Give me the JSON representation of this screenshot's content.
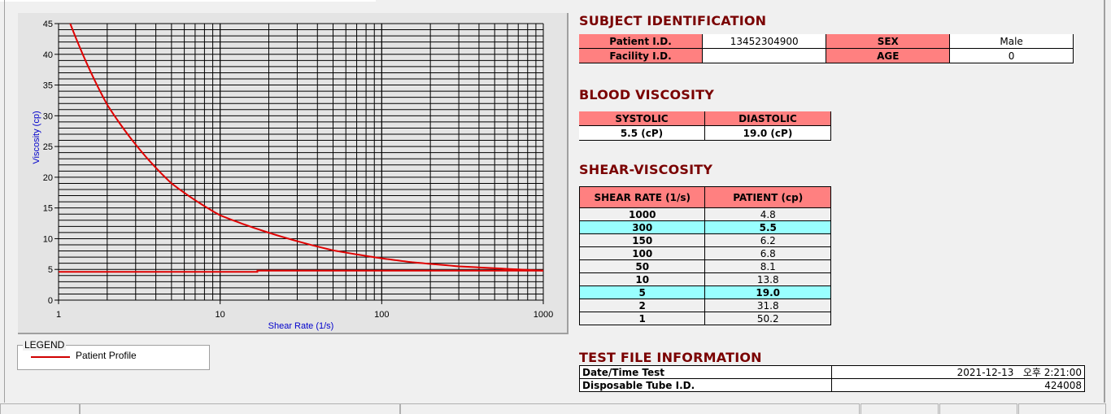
{
  "chart_data": {
    "type": "line",
    "title": "",
    "xlabel": "Shear Rate (1/s)",
    "ylabel": "Viscosity (cp)",
    "xscale": "log",
    "xlim": [
      1,
      1000
    ],
    "ylim": [
      0,
      45
    ],
    "x_ticks": [
      "1",
      "10",
      "100",
      "1000"
    ],
    "y_ticks": [
      "0",
      "5",
      "10",
      "15",
      "20",
      "25",
      "30",
      "35",
      "40",
      "45"
    ],
    "grid": true,
    "line_color": "#e00000",
    "plot_background": "#e4e4e4",
    "series": [
      {
        "name": "Patient Profile",
        "x": [
          1,
          2,
          5,
          10,
          50,
          100,
          150,
          300,
          1000
        ],
        "y": [
          50.2,
          31.8,
          19.0,
          13.8,
          8.1,
          6.8,
          6.2,
          5.5,
          4.8
        ]
      },
      {
        "x": [
          1,
          17,
          17,
          1000
        ],
        "y": [
          4.6,
          4.6,
          4.8,
          4.8
        ]
      }
    ],
    "legend": {
      "title": "LEGEND",
      "placement": "bottom-left"
    }
  },
  "subject": {
    "title": "SUBJECT IDENTIFICATION",
    "patient_id_label": "Patient I.D.",
    "patient_id": "13452304900",
    "sex_label": "SEX",
    "sex": "Male",
    "facility_id_label": "Facility I.D.",
    "facility_id": "",
    "age_label": "AGE",
    "age": "0"
  },
  "blood": {
    "title": "BLOOD VISCOSITY",
    "systolic_label": "SYSTOLIC",
    "diastolic_label": "DIASTOLIC",
    "systolic": "5.5 (cP)",
    "diastolic": "19.0 (cP)"
  },
  "shear": {
    "title": "SHEAR-VISCOSITY",
    "col_rate": "SHEAR RATE (1/s)",
    "col_patient": "PATIENT (cp)",
    "rows": [
      {
        "rate": "1000",
        "value": "4.8",
        "highlight": false
      },
      {
        "rate": "300",
        "value": "5.5",
        "highlight": true
      },
      {
        "rate": "150",
        "value": "6.2",
        "highlight": false
      },
      {
        "rate": "100",
        "value": "6.8",
        "highlight": false
      },
      {
        "rate": "50",
        "value": "8.1",
        "highlight": false
      },
      {
        "rate": "10",
        "value": "13.8",
        "highlight": false
      },
      {
        "rate": "5",
        "value": "19.0",
        "highlight": true
      },
      {
        "rate": "2",
        "value": "31.8",
        "highlight": false
      },
      {
        "rate": "1",
        "value": "50.2",
        "highlight": false
      }
    ],
    "highlight_color": "#99ffff",
    "header_color": "#ff8080"
  },
  "testfile": {
    "title": "TEST FILE INFORMATION",
    "datetime_label": "Date/Time Test",
    "datetime": "2021-12-13   오후 2:21:00",
    "tube_label": "Disposable Tube I.D.",
    "tube": "424008"
  }
}
